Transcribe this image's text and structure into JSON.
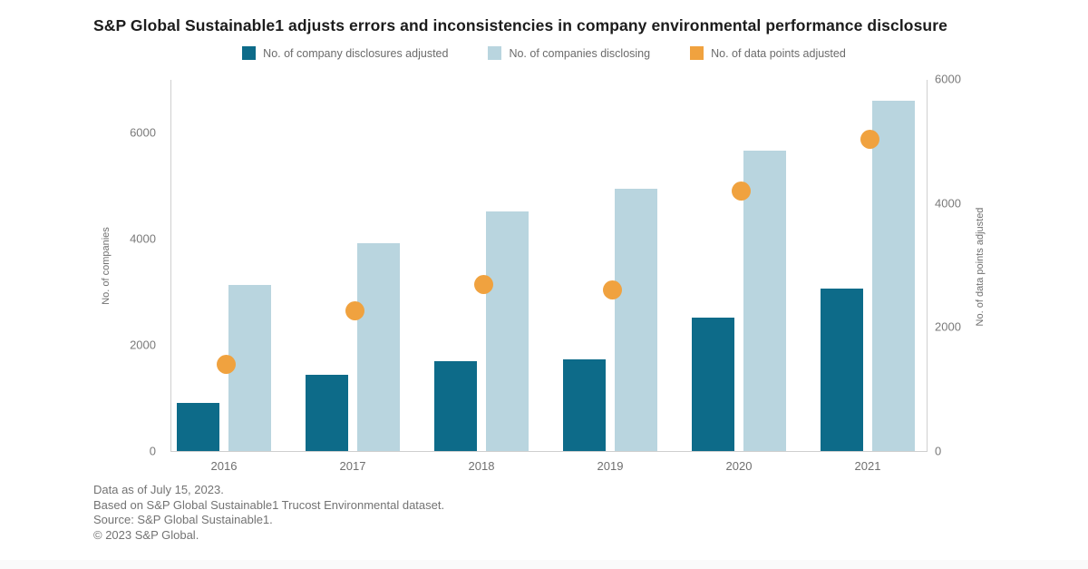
{
  "title": "S&P Global Sustainable1 adjusts errors and inconsistencies in company environmental performance disclosure",
  "legend": [
    {
      "label": "No. of company disclosures adjusted",
      "color": "#0d6b89",
      "icon": "legend-swatch-dark-teal"
    },
    {
      "label": "No. of companies disclosing",
      "color": "#b9d5df",
      "icon": "legend-swatch-light-blue"
    },
    {
      "label": "No. of data points adjusted",
      "color": "#f0a23f",
      "icon": "legend-swatch-orange"
    }
  ],
  "chart_data": {
    "type": "bar",
    "categories": [
      "2016",
      "2017",
      "2018",
      "2019",
      "2020",
      "2021"
    ],
    "series": [
      {
        "name": "No. of company disclosures adjusted",
        "type": "bar",
        "axis": "left",
        "color": "#0d6b89",
        "values": [
          900,
          1440,
          1690,
          1720,
          2510,
          3060
        ]
      },
      {
        "name": "No. of companies disclosing",
        "type": "bar",
        "axis": "left",
        "color": "#b9d5df",
        "values": [
          3130,
          3910,
          4500,
          4930,
          5660,
          6590
        ]
      },
      {
        "name": "No. of data points adjusted",
        "type": "scatter",
        "axis": "right",
        "color": "#f0a23f",
        "values": [
          1400,
          2260,
          2680,
          2600,
          4190,
          5020
        ]
      }
    ],
    "left_axis": {
      "label": "No. of companies",
      "ticks": [
        0,
        2000,
        4000,
        6000
      ],
      "max": 7000
    },
    "right_axis": {
      "label": "No. of data points adjusted",
      "ticks": [
        0,
        2000,
        4000,
        6000
      ],
      "max": 6000
    },
    "grid": false,
    "legend_position": "top"
  },
  "footer": {
    "line1": "Data as of July 15, 2023.",
    "line2": "Based on S&P Global Sustainable1 Trucost Environmental dataset.",
    "line3": "Source: S&P Global Sustainable1.",
    "line4": "© 2023 S&P Global."
  }
}
